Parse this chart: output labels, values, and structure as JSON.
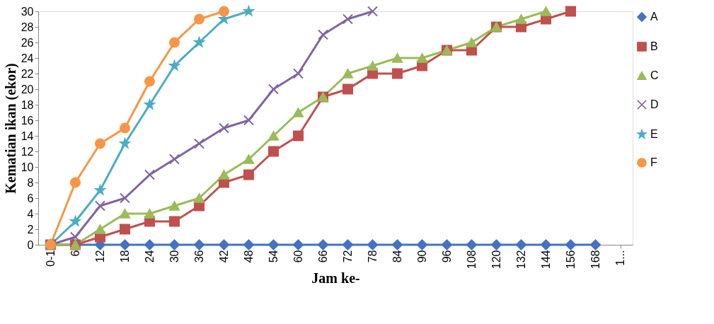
{
  "chart_data": {
    "type": "line",
    "xlabel": "Jam ke-",
    "ylabel": "Kematian ikan (ekor)",
    "categories": [
      "0-1",
      "6",
      "12",
      "18",
      "24",
      "30",
      "36",
      "42",
      "48",
      "54",
      "60",
      "66",
      "72",
      "78",
      "84",
      "90",
      "96",
      "108",
      "120",
      "132",
      "144",
      "156",
      "168",
      "1..."
    ],
    "ylim": [
      0,
      30
    ],
    "yticks": [
      0,
      2,
      4,
      6,
      8,
      10,
      12,
      14,
      16,
      18,
      20,
      22,
      24,
      26,
      28,
      30
    ],
    "grid": false,
    "legend": "right",
    "line_style": "solid",
    "series": [
      {
        "name": "A",
        "color": "#4472c4",
        "marker": "diamond",
        "values": [
          0,
          0,
          0,
          0,
          0,
          0,
          0,
          0,
          0,
          0,
          0,
          0,
          0,
          0,
          0,
          0,
          0,
          0,
          0,
          0,
          0,
          0,
          0,
          null
        ]
      },
      {
        "name": "B",
        "color": "#c0504d",
        "marker": "square",
        "values": [
          0,
          0,
          1,
          2,
          3,
          3,
          5,
          8,
          9,
          12,
          14,
          19,
          20,
          22,
          22,
          23,
          25,
          25,
          28,
          28,
          29,
          30,
          null,
          null
        ]
      },
      {
        "name": "C",
        "color": "#9bbb59",
        "marker": "triangle",
        "values": [
          0,
          0,
          2,
          4,
          4,
          5,
          6,
          9,
          11,
          14,
          17,
          19,
          22,
          23,
          24,
          24,
          25,
          26,
          28,
          29,
          30,
          null,
          null,
          null
        ]
      },
      {
        "name": "D",
        "color": "#8064a2",
        "marker": "cross",
        "values": [
          0,
          1,
          5,
          6,
          9,
          11,
          13,
          15,
          16,
          20,
          22,
          27,
          29,
          30,
          null,
          null,
          null,
          null,
          null,
          null,
          null,
          null,
          null,
          null
        ]
      },
      {
        "name": "E",
        "color": "#4bacc6",
        "marker": "star",
        "values": [
          0,
          3,
          7,
          13,
          18,
          23,
          26,
          29,
          30,
          null,
          null,
          null,
          null,
          null,
          null,
          null,
          null,
          null,
          null,
          null,
          null,
          null,
          null,
          null
        ]
      },
      {
        "name": "F",
        "color": "#f79646",
        "marker": "circle",
        "values": [
          0,
          8,
          13,
          15,
          21,
          26,
          29,
          30,
          null,
          null,
          null,
          null,
          null,
          null,
          null,
          null,
          null,
          null,
          null,
          null,
          null,
          null,
          null,
          null
        ]
      }
    ]
  }
}
